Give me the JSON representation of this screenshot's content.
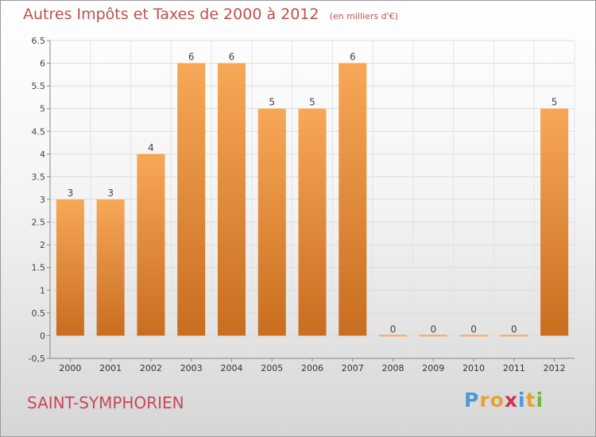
{
  "chart_data": {
    "type": "bar",
    "title": "Autres Impôts et Taxes de 2000 à 2012",
    "subtitle": "(en milliers d'€)",
    "categories": [
      "2000",
      "2001",
      "2002",
      "2003",
      "2004",
      "2005",
      "2006",
      "2007",
      "2008",
      "2009",
      "2010",
      "2011",
      "2012"
    ],
    "values": [
      3,
      3,
      4,
      6,
      6,
      5,
      5,
      6,
      0,
      0,
      0,
      0,
      5
    ],
    "data_labels": [
      "3",
      "3",
      "4",
      "6",
      "6",
      "5",
      "5",
      "6",
      "0",
      "0",
      "0",
      "0",
      "5"
    ],
    "ylim": [
      -0.5,
      6.5
    ],
    "yticks": [
      "-0,5",
      "0",
      "0.5",
      "1",
      "1.5",
      "2",
      "2.5",
      "3",
      "3.5",
      "4",
      "4.5",
      "5",
      "5.5",
      "6",
      "6.5"
    ],
    "ytick_values": [
      -0.5,
      0,
      0.5,
      1,
      1.5,
      2,
      2.5,
      3,
      3.5,
      4,
      4.5,
      5,
      5.5,
      6,
      6.5
    ],
    "bar_color_top": "#f7a857",
    "bar_color_bottom": "#c96d1f",
    "grid": true
  },
  "footer": {
    "place": "SAINT-SYMPHORIEN",
    "brand_letters": [
      {
        "ch": "P",
        "color": "#4a9ad4"
      },
      {
        "ch": "r",
        "color": "#e2a23b"
      },
      {
        "ch": "o",
        "color": "#e2a23b"
      },
      {
        "ch": "x",
        "color": "#d6304f"
      },
      {
        "ch": "i",
        "color": "#4a9ad4"
      },
      {
        "ch": "t",
        "color": "#e2a23b"
      },
      {
        "ch": "i",
        "color": "#6fb63b"
      }
    ]
  }
}
